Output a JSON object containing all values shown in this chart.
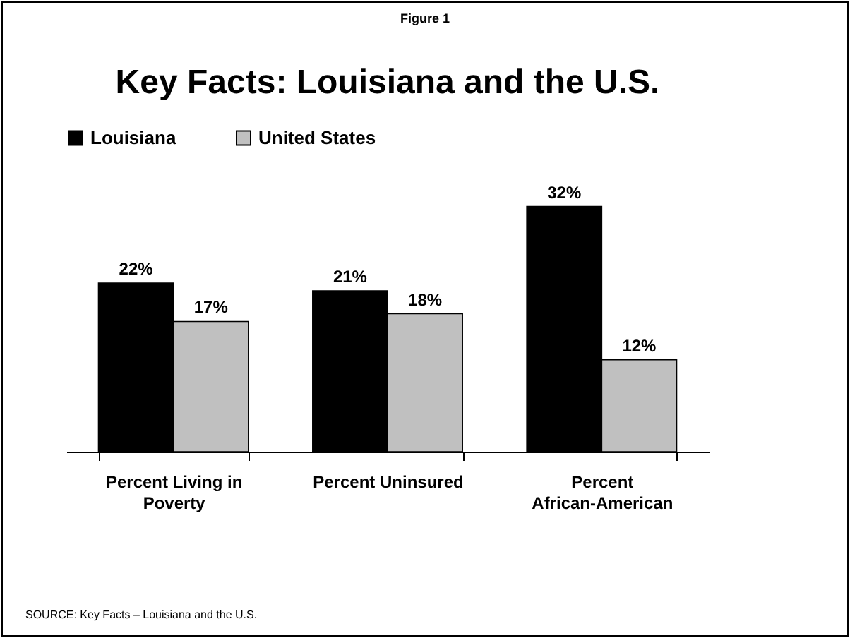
{
  "chart_data": {
    "type": "bar",
    "title": "Key Facts:  Louisiana and the U.S.",
    "categories": [
      "Percent Living in Poverty",
      "Percent Uninsured",
      "Percent African-American"
    ],
    "series": [
      {
        "name": "Louisiana",
        "color": "#000000",
        "values": [
          22,
          21,
          32
        ],
        "value_labels": [
          "22%",
          "21%",
          "32%"
        ]
      },
      {
        "name": "United States",
        "color": "#c0c0c0",
        "values": [
          17,
          18,
          12
        ],
        "value_labels": [
          "17%",
          "18%",
          "12%"
        ]
      }
    ],
    "legend": "top",
    "annotations": [
      "Figure 1",
      "SOURCE: Key Facts – Louisiana and the U.S."
    ]
  }
}
